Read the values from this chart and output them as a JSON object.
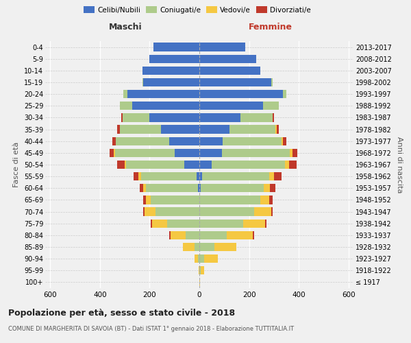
{
  "age_groups": [
    "0-4",
    "5-9",
    "10-14",
    "15-19",
    "20-24",
    "25-29",
    "30-34",
    "35-39",
    "40-44",
    "45-49",
    "50-54",
    "55-59",
    "60-64",
    "65-69",
    "70-74",
    "75-79",
    "80-84",
    "85-89",
    "90-94",
    "95-99",
    "100+"
  ],
  "birth_years": [
    "2013-2017",
    "2008-2012",
    "2003-2007",
    "1998-2002",
    "1993-1997",
    "1988-1992",
    "1983-1987",
    "1978-1982",
    "1973-1977",
    "1968-1972",
    "1963-1967",
    "1958-1962",
    "1953-1957",
    "1948-1952",
    "1943-1947",
    "1938-1942",
    "1933-1937",
    "1928-1932",
    "1923-1927",
    "1918-1922",
    "≤ 1917"
  ],
  "maschi_celibe": [
    185,
    200,
    230,
    225,
    290,
    270,
    200,
    155,
    120,
    100,
    60,
    10,
    5,
    0,
    0,
    0,
    0,
    0,
    0,
    0,
    0
  ],
  "maschi_coniugato": [
    0,
    0,
    0,
    5,
    15,
    50,
    110,
    165,
    215,
    240,
    235,
    225,
    210,
    195,
    175,
    130,
    55,
    20,
    5,
    0,
    0
  ],
  "maschi_vedovo": [
    0,
    0,
    0,
    0,
    0,
    0,
    0,
    0,
    0,
    5,
    5,
    10,
    10,
    20,
    45,
    60,
    60,
    45,
    15,
    2,
    0
  ],
  "maschi_divorziato": [
    0,
    0,
    0,
    0,
    0,
    0,
    5,
    10,
    15,
    15,
    30,
    20,
    15,
    10,
    5,
    5,
    5,
    0,
    0,
    0,
    0
  ],
  "femmine_celibe": [
    185,
    230,
    245,
    290,
    335,
    255,
    165,
    120,
    95,
    90,
    50,
    10,
    5,
    0,
    0,
    0,
    0,
    0,
    0,
    0,
    0
  ],
  "femmine_coniugata": [
    0,
    0,
    0,
    5,
    15,
    65,
    130,
    185,
    235,
    275,
    295,
    270,
    255,
    245,
    220,
    175,
    110,
    60,
    20,
    5,
    0
  ],
  "femmine_vedova": [
    0,
    0,
    0,
    0,
    0,
    0,
    0,
    5,
    5,
    10,
    15,
    20,
    25,
    35,
    70,
    90,
    105,
    90,
    55,
    15,
    2
  ],
  "femmine_divorziata": [
    0,
    0,
    0,
    0,
    0,
    0,
    5,
    10,
    15,
    20,
    30,
    30,
    20,
    15,
    5,
    5,
    5,
    0,
    0,
    0,
    0
  ],
  "colors": {
    "celibe": "#4472C4",
    "coniugato": "#AECB8B",
    "vedovo": "#F5C842",
    "divorziato": "#C0392B"
  },
  "title": "Popolazione per età, sesso e stato civile - 2018",
  "subtitle": "COMUNE DI MARGHERITA DI SAVOIA (BT) - Dati ISTAT 1° gennaio 2018 - Elaborazione TUTTITALIA.IT",
  "xlabel_left": "Maschi",
  "xlabel_right": "Femmine",
  "ylabel_left": "Fasce di età",
  "ylabel_right": "Anni di nascita",
  "xlim": 620,
  "legend_labels": [
    "Celibi/Nubili",
    "Coniugati/e",
    "Vedovi/e",
    "Divorziati/e"
  ]
}
